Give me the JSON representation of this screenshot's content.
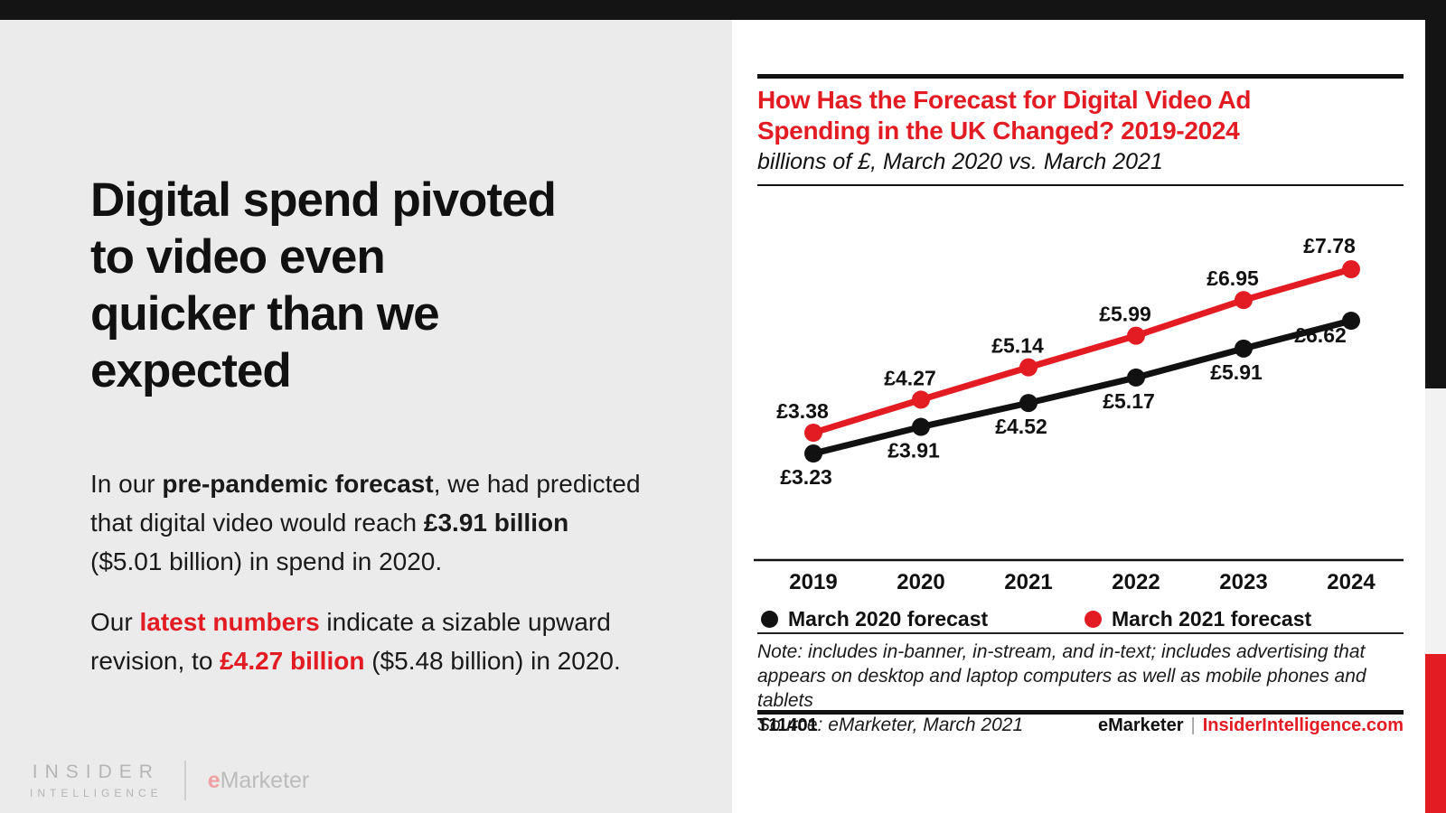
{
  "colors": {
    "accent_red": "#e31b23",
    "series_black": "#111111",
    "top_bar": "#141414",
    "left_panel_bg": "#ebebeb",
    "strip_gray": "#f2f2f2"
  },
  "left_panel": {
    "headline_lines": [
      "Digital spend pivoted",
      "to video even",
      "quicker than we",
      "expected"
    ],
    "paragraph1": [
      {
        "t": "In our "
      },
      {
        "t": "pre-pandemic forecast"
      },
      {
        "t": ", we had predicted that digital video would reach "
      },
      {
        "t": "£3.91 billion"
      },
      {
        "t": " ($5.01 billion) in spend in 2020."
      }
    ],
    "paragraph2": [
      {
        "t": "Our "
      },
      {
        "t": "latest numbers"
      },
      {
        "t": " indicate a sizable upward revision, to "
      },
      {
        "t": "£4.27 billion"
      },
      {
        "t": " ($5.48 billion) in 2020."
      }
    ],
    "logo": {
      "insider_line1": "INSIDER",
      "insider_line2": "INTELLIGENCE",
      "emarketer_e": "e",
      "emarketer_rest": "Marketer"
    }
  },
  "chart_panel": {
    "title_lines": [
      "How Has the Forecast for Digital Video Ad",
      "Spending in the UK Changed? 2019-2024"
    ],
    "subtitle": "billions of £, March 2020 vs. March 2021",
    "note_lines": [
      "Note: includes in-banner, in-stream, and in-text; includes advertising that",
      "appears on desktop and laptop computers as well as mobile phones and tablets",
      "Source: eMarketer, March 2021"
    ],
    "footer": {
      "id": "T11401",
      "brand": "eMarketer",
      "separator": "|",
      "site": "InsiderIntelligence.com"
    }
  },
  "chart_data": {
    "type": "line",
    "title": "How Has the Forecast for Digital Video Ad Spending in the UK Changed? 2019-2024",
    "subtitle": "billions of £, March 2020 vs. March 2021",
    "currency": "£",
    "categories": [
      "2019",
      "2020",
      "2021",
      "2022",
      "2023",
      "2024"
    ],
    "series": [
      {
        "name": "March 2020 forecast",
        "color": "#111111",
        "values": [
          3.23,
          3.91,
          4.52,
          5.17,
          5.91,
          6.62
        ]
      },
      {
        "name": "March 2021 forecast",
        "color": "#e31b23",
        "values": [
          3.38,
          4.27,
          5.14,
          5.99,
          6.95,
          7.78
        ]
      }
    ],
    "ylabel": "billions of £",
    "xlabel": "",
    "ylim": [
      3.0,
      8.0
    ],
    "grid": false,
    "legend_position": "bottom",
    "data_labels": true
  }
}
